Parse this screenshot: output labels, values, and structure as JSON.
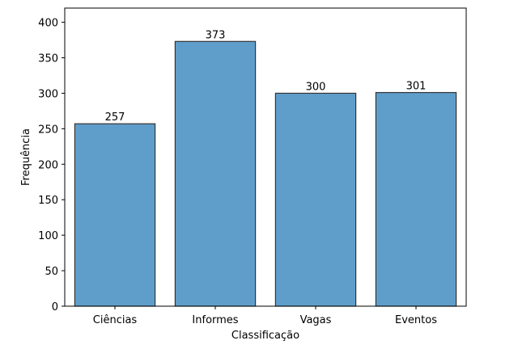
{
  "chart_data": {
    "type": "bar",
    "title": "",
    "xlabel": "Classificação",
    "ylabel": "Frequência",
    "categories": [
      "Ciências",
      "Informes",
      "Vagas",
      "Eventos"
    ],
    "values": [
      257,
      373,
      300,
      301
    ],
    "data_labels": [
      "257",
      "373",
      "300",
      "301"
    ],
    "ylim": [
      0,
      420
    ],
    "yticks": [
      0,
      50,
      100,
      150,
      200,
      250,
      300,
      350,
      400
    ],
    "grid": false,
    "legend": "none",
    "bar_color": "#5f9ecb",
    "bar_edge_color": "#333333"
  }
}
